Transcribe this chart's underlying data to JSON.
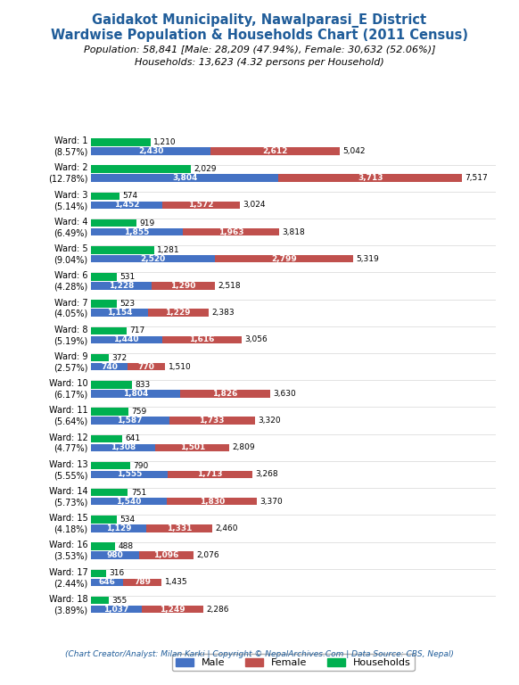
{
  "title_line1": "Gaidakot Municipality, Nawalparasi_E District",
  "title_line2": "Wardwise Population & Households Chart (2011 Census)",
  "subtitle_line1": "Population: 58,841 [Male: 28,209 (47.94%), Female: 30,632 (52.06%)]",
  "subtitle_line2": "Households: 13,623 (4.32 persons per Household)",
  "footer": "(Chart Creator/Analyst: Milan Karki | Copyright © NepalArchives.Com | Data Source: CBS, Nepal)",
  "wards": [
    {
      "ward": 1,
      "pct": "8.57%",
      "households": 1210,
      "male": 2430,
      "female": 2612,
      "total": 5042
    },
    {
      "ward": 2,
      "pct": "12.78%",
      "households": 2029,
      "male": 3804,
      "female": 3713,
      "total": 7517
    },
    {
      "ward": 3,
      "pct": "5.14%",
      "households": 574,
      "male": 1452,
      "female": 1572,
      "total": 3024
    },
    {
      "ward": 4,
      "pct": "6.49%",
      "households": 919,
      "male": 1855,
      "female": 1963,
      "total": 3818
    },
    {
      "ward": 5,
      "pct": "9.04%",
      "households": 1281,
      "male": 2520,
      "female": 2799,
      "total": 5319
    },
    {
      "ward": 6,
      "pct": "4.28%",
      "households": 531,
      "male": 1228,
      "female": 1290,
      "total": 2518
    },
    {
      "ward": 7,
      "pct": "4.05%",
      "households": 523,
      "male": 1154,
      "female": 1229,
      "total": 2383
    },
    {
      "ward": 8,
      "pct": "5.19%",
      "households": 717,
      "male": 1440,
      "female": 1616,
      "total": 3056
    },
    {
      "ward": 9,
      "pct": "2.57%",
      "households": 372,
      "male": 740,
      "female": 770,
      "total": 1510
    },
    {
      "ward": 10,
      "pct": "6.17%",
      "households": 833,
      "male": 1804,
      "female": 1826,
      "total": 3630
    },
    {
      "ward": 11,
      "pct": "5.64%",
      "households": 759,
      "male": 1587,
      "female": 1733,
      "total": 3320
    },
    {
      "ward": 12,
      "pct": "4.77%",
      "households": 641,
      "male": 1308,
      "female": 1501,
      "total": 2809
    },
    {
      "ward": 13,
      "pct": "5.55%",
      "households": 790,
      "male": 1555,
      "female": 1713,
      "total": 3268
    },
    {
      "ward": 14,
      "pct": "5.73%",
      "households": 751,
      "male": 1540,
      "female": 1830,
      "total": 3370
    },
    {
      "ward": 15,
      "pct": "4.18%",
      "households": 534,
      "male": 1129,
      "female": 1331,
      "total": 2460
    },
    {
      "ward": 16,
      "pct": "3.53%",
      "households": 488,
      "male": 980,
      "female": 1096,
      "total": 2076
    },
    {
      "ward": 17,
      "pct": "2.44%",
      "households": 316,
      "male": 646,
      "female": 789,
      "total": 1435
    },
    {
      "ward": 18,
      "pct": "3.89%",
      "households": 355,
      "male": 1037,
      "female": 1249,
      "total": 2286
    }
  ],
  "color_male": "#4472C4",
  "color_female": "#C0504D",
  "color_households": "#00B050",
  "color_title": "#1F5C99",
  "background_color": "#FFFFFF",
  "xlim": 8200,
  "fontsize_title": 10.5,
  "fontsize_subtitle": 8.0,
  "fontsize_ward": 7.0,
  "fontsize_bar": 6.5,
  "fontsize_footer": 6.5,
  "fontsize_legend": 8.0
}
